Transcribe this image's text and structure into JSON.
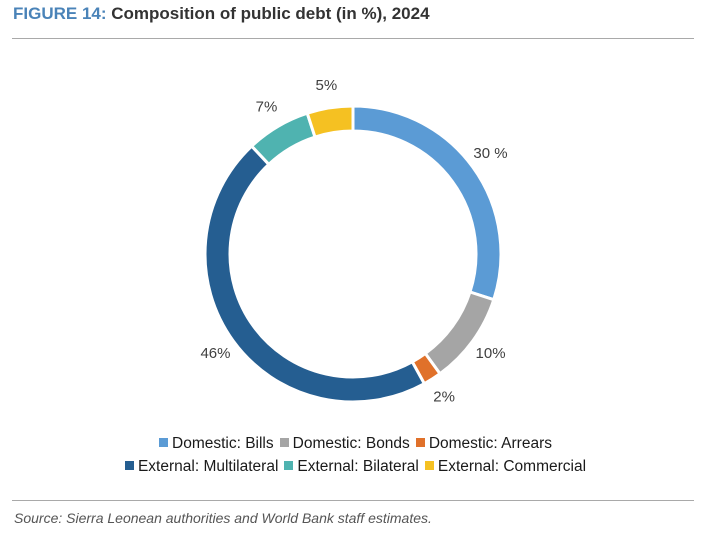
{
  "figure": {
    "label": "FIGURE 14:",
    "title": "Composition of public debt (in %), 2024",
    "source": "Source: Sierra Leonean authorities and World Bank staff estimates."
  },
  "chart_data": {
    "type": "pie",
    "donut": true,
    "categories": [
      "Domestic: Bills",
      "Domestic: Bonds",
      "Domestic: Arrears",
      "External: Multilateral",
      "External: Bilateral",
      "External: Commercial"
    ],
    "values": [
      30,
      10,
      2,
      46,
      7,
      5
    ],
    "data_labels": [
      "30 %",
      "10%",
      "2%",
      "46%",
      "7%",
      "5%"
    ],
    "colors": [
      "#5b9bd5",
      "#a5a5a5",
      "#e0712a",
      "#255e91",
      "#4fb3b0",
      "#f5c122"
    ],
    "legend_position": "bottom",
    "legend_rows": [
      [
        0,
        1,
        2
      ],
      [
        3,
        4,
        5
      ]
    ]
  }
}
